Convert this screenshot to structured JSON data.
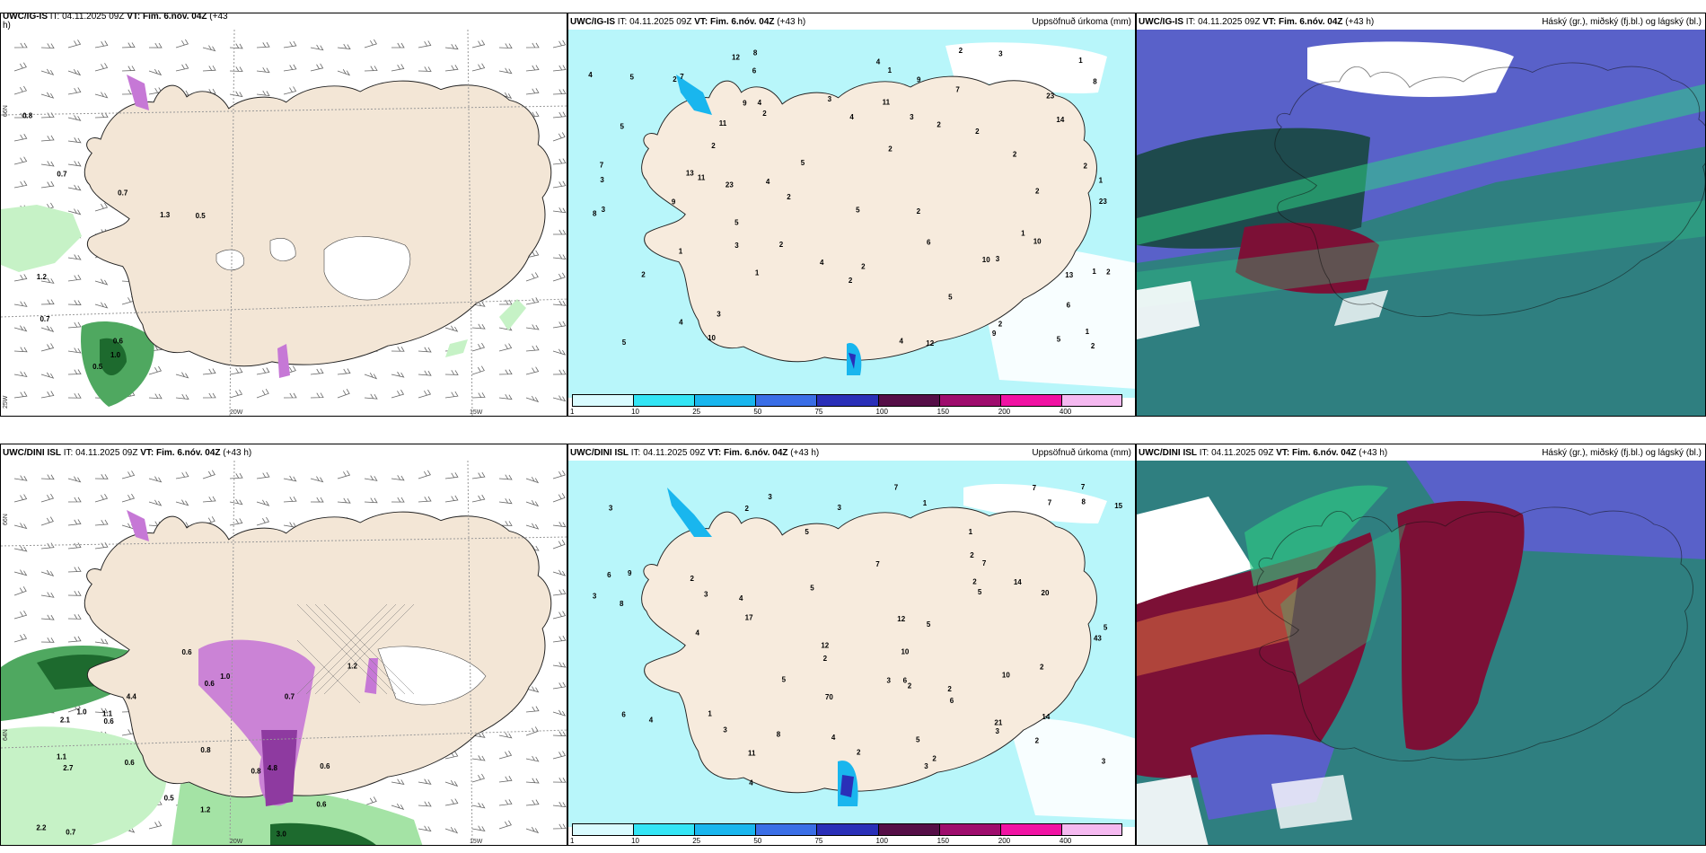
{
  "panels": {
    "top_left": {
      "title_model": "UWC/IG-IS",
      "title_rest": " IT: 04.11.2025 09Z ",
      "vt_label": "VT: Fim. 6.nóv. 04Z",
      "lead": "(+43",
      "lead2": "h)"
    },
    "top_mid": {
      "title_model": "UWC/IG-IS",
      "title_rest": " IT: 04.11.2025 09Z ",
      "vt_label": "VT: Fim. 6.nóv. 04Z",
      "lead": " (+43 h)",
      "right": "Uppsöfnuð úrkoma (mm)"
    },
    "top_right": {
      "title_model": "UWC/IG-IS",
      "title_rest": " IT: 04.11.2025 09Z ",
      "vt_label": "VT: Fim. 6.nóv. 04Z",
      "lead": " (+43 h)",
      "right": "Háský (gr.), miðský (fj.bl.) og lágský (bl.)"
    },
    "bot_left": {
      "title_model": "UWC/DINI ISL",
      "title_rest": " IT: 04.11.2025 09Z ",
      "vt_label": "VT: Fim. 6.nóv. 04Z",
      "lead": " (+43 h)"
    },
    "bot_mid": {
      "title_model": "UWC/DINI ISL",
      "title_rest": " IT: 04.11.2025 09Z ",
      "vt_label": "VT: Fim. 6.nóv. 04Z",
      "lead": " (+43 h)",
      "right": "Uppsöfnuð úrkoma (mm)"
    },
    "bot_right": {
      "title_model": "UWC/DINI ISL",
      "title_rest": " IT: 04.11.2025 09Z ",
      "vt_label": "VT: Fim. 6.nóv. 04Z",
      "lead": " (+43 h)",
      "right": "Háský (gr.), miðský (fj.bl.) og lágský (bl.)"
    }
  },
  "axes": {
    "lon_20w": "20W",
    "lon_15w": "15W",
    "lat_66n": "66N",
    "lat_64n": "64N",
    "lon_25w": "25W"
  },
  "colorbar": {
    "labels": [
      "1",
      "10",
      "25",
      "50",
      "75",
      "100",
      "150",
      "200",
      "400"
    ],
    "colors": [
      "#d9fbff",
      "#33e5f5",
      "#19b6ee",
      "#3a6ee6",
      "#2a2fb8",
      "#550e47",
      "#9e0d6d",
      "#f012a3",
      "#f5b9f0"
    ]
  },
  "colors": {
    "land": "#f3e6d6",
    "precip_light": "#b8f6fa",
    "ice": "#ffffff",
    "cloud_high": "#1b1b1b",
    "cloud_teal": "#2f7f80",
    "cloud_blue": "#5961c9",
    "cloud_red": "#7c1036",
    "green": "#2ecf83"
  },
  "top_mid_points": [
    "2",
    "2",
    "2",
    "1",
    "2",
    "1",
    "2",
    "2",
    "13",
    "23",
    "2",
    "10",
    "2",
    "1",
    "2",
    "5",
    "5",
    "7",
    "8",
    "3",
    "1",
    "11",
    "4",
    "1",
    "2",
    "3",
    "5",
    "5",
    "4",
    "8",
    "10",
    "2",
    "9",
    "4",
    "13",
    "3",
    "23",
    "6",
    "14",
    "1",
    "12",
    "5",
    "4",
    "2",
    "6",
    "2",
    "3",
    "2",
    "4",
    "3",
    "5",
    "11",
    "9",
    "7",
    "3",
    "2",
    "4",
    "10",
    "3",
    "2",
    "2",
    "1",
    "5",
    "6",
    "9",
    "7",
    "5",
    "11",
    "12",
    "9",
    "4",
    "3",
    "23",
    "8",
    "2",
    "4",
    "1",
    "2"
  ],
  "bot_mid_points": [
    "2",
    "2",
    "1",
    "2",
    "14",
    "5",
    "43",
    "17",
    "2",
    "3",
    "4",
    "6",
    "12",
    "6",
    "5",
    "7",
    "8",
    "7",
    "10",
    "20",
    "21",
    "2",
    "11",
    "3",
    "5",
    "7",
    "4",
    "3",
    "2",
    "5",
    "6",
    "7",
    "1",
    "8",
    "3",
    "4",
    "7",
    "9",
    "5",
    "2",
    "3",
    "12",
    "15",
    "14",
    "1",
    "2",
    "3",
    "70",
    "10",
    "8",
    "5",
    "7",
    "4",
    "2",
    "3",
    "3",
    "2",
    "5",
    "4",
    "6",
    "3",
    "3",
    "2"
  ],
  "top_left_labels": [
    "0.5",
    "0.6",
    "0.7",
    "0.8",
    "0.5",
    "0.7",
    "1.0",
    "1.2",
    "1.3",
    "0.7"
  ],
  "bot_left_labels": [
    "0.6",
    "0.8",
    "0.6",
    "1.1",
    "1.0",
    "0.5",
    "0.7",
    "0.6",
    "1.2",
    "0.6",
    "2.1",
    "1.2",
    "3.0",
    "0.6",
    "2.2",
    "4.8",
    "1.0",
    "2.7",
    "0.7",
    "0.6",
    "0.8",
    "4.4",
    "1.1"
  ]
}
